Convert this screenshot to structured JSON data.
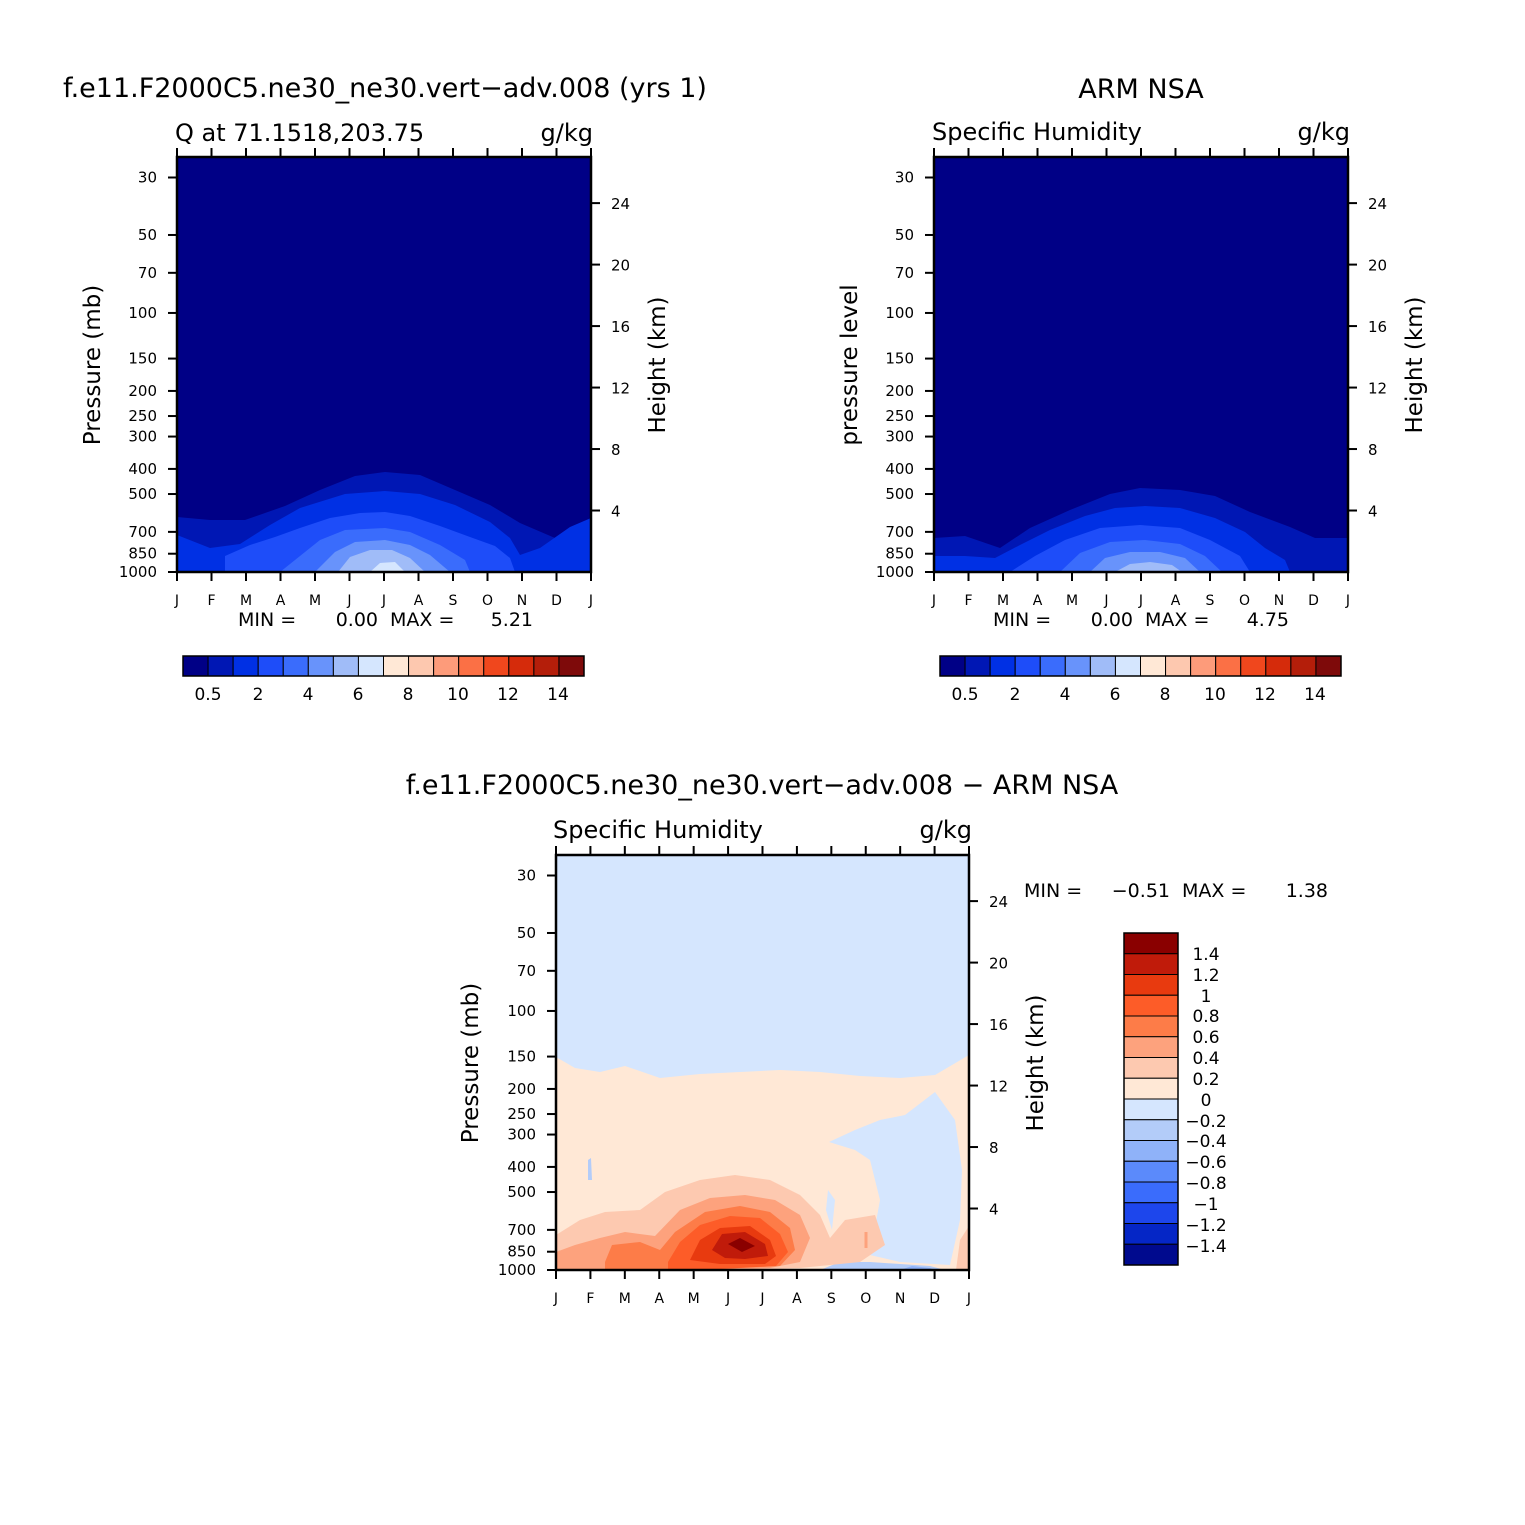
{
  "months": [
    "J",
    "F",
    "M",
    "A",
    "M",
    "J",
    "J",
    "A",
    "S",
    "O",
    "N",
    "D",
    "J"
  ],
  "pressure_ticks": [
    "30",
    "50",
    "70",
    "100",
    "150",
    "200",
    "250",
    "300",
    "400",
    "500",
    "700",
    "850",
    "1000"
  ],
  "pressure_values": [
    30,
    50,
    70,
    100,
    150,
    200,
    250,
    300,
    400,
    500,
    700,
    850,
    1000
  ],
  "height_ticks": [
    "4",
    "8",
    "12",
    "16",
    "20",
    "24"
  ],
  "height_values": [
    4,
    8,
    12,
    16,
    20,
    24
  ],
  "panels": {
    "model": {
      "header": "f.e11.F2000C5.ne30_ne30.vert−adv.008 (yrs 1)",
      "left_label": "Q at 71.1518,203.75",
      "units": "g/kg",
      "ylabel": "Pressure (mb)",
      "ylabel_right": "Height (km)",
      "stats": {
        "min_label": "MIN =",
        "min": "0.00",
        "max_label": "MAX =",
        "max": "5.21"
      },
      "colorbar_labels": [
        "0.5",
        "2",
        "4",
        "6",
        "8",
        "10",
        "12",
        "14"
      ]
    },
    "obs": {
      "header": "ARM NSA",
      "left_label": "Specific Humidity",
      "units": "g/kg",
      "ylabel": "pressure level",
      "ylabel_right": "Height (km)",
      "stats": {
        "min_label": "MIN =",
        "min": "0.00",
        "max_label": "MAX =",
        "max": "4.75"
      },
      "colorbar_labels": [
        "0.5",
        "2",
        "4",
        "6",
        "8",
        "10",
        "12",
        "14"
      ]
    },
    "diff": {
      "header": "f.e11.F2000C5.ne30_ne30.vert−adv.008 − ARM NSA",
      "left_label": "Specific Humidity",
      "units": "g/kg",
      "ylabel": "Pressure (mb)",
      "ylabel_right": "Height (km)",
      "stats": {
        "min_label": "MIN =",
        "min": "−0.51",
        "max_label": "MAX =",
        "max": "1.38"
      },
      "colorbar_labels": [
        "1.4",
        "1.2",
        "1",
        "0.8",
        "0.6",
        "0.4",
        "0.2",
        "0",
        "−0.2",
        "−0.4",
        "−0.6",
        "−0.8",
        "−1",
        "−1.2",
        "−1.4"
      ]
    }
  },
  "colors": {
    "abs_palette": [
      "#000086",
      "#0017b4",
      "#0030e4",
      "#1e4df9",
      "#3a6cfc",
      "#6893fb",
      "#a0bcf8",
      "#d5e6fe",
      "#ffe8d6",
      "#fdc8af",
      "#fd9b7a",
      "#fb7045",
      "#f0471d",
      "#d52b0b",
      "#b41e0a",
      "#7e0a0a"
    ],
    "diff_palette": [
      "#8a0000",
      "#c01b0a",
      "#e83a0f",
      "#fd5c28",
      "#fd7c48",
      "#fda27d",
      "#fdc9b0",
      "#ffe8d6",
      "#d5e6fe",
      "#b3ccf9",
      "#8fb2f9",
      "#5b8afb",
      "#3a6cfc",
      "#1d46ec",
      "#0526c6",
      "#000a8e"
    ]
  },
  "chart_data": [
    {
      "type": "heatmap",
      "title": "f.e11.F2000C5.ne30_ne30.vert−adv.008 (yrs 1)",
      "subtitle": "Q at 71.1518,203.75",
      "units": "g/kg",
      "xlabel": "",
      "ylabel": "Pressure (mb)",
      "ylabel_right": "Height (km)",
      "x": [
        "J",
        "F",
        "M",
        "A",
        "M",
        "J",
        "J",
        "A",
        "S",
        "O",
        "N",
        "D",
        "J"
      ],
      "y_pressure": [
        30,
        50,
        70,
        100,
        150,
        200,
        250,
        300,
        400,
        500,
        700,
        850,
        1000
      ],
      "y_scale": "log",
      "contour_top_pressure": [
        650,
        660,
        660,
        600,
        500,
        430,
        410,
        430,
        500,
        600,
        700,
        700,
        650
      ],
      "min": 0.0,
      "max": 5.21,
      "colorbar_levels": [
        0.5,
        2,
        4,
        6,
        8,
        10,
        12,
        14
      ]
    },
    {
      "type": "heatmap",
      "title": "ARM NSA",
      "subtitle": "Specific Humidity",
      "units": "g/kg",
      "xlabel": "",
      "ylabel": "pressure level",
      "ylabel_right": "Height (km)",
      "x": [
        "J",
        "F",
        "M",
        "A",
        "M",
        "J",
        "J",
        "A",
        "S",
        "O",
        "N",
        "D",
        "J"
      ],
      "y_pressure": [
        30,
        50,
        70,
        100,
        150,
        200,
        250,
        300,
        400,
        500,
        700,
        850,
        1000
      ],
      "y_scale": "log",
      "contour_top_pressure": [
        720,
        720,
        760,
        640,
        560,
        480,
        450,
        460,
        520,
        620,
        720,
        720,
        720
      ],
      "min": 0.0,
      "max": 4.75,
      "colorbar_levels": [
        0.5,
        2,
        4,
        6,
        8,
        10,
        12,
        14
      ]
    },
    {
      "type": "heatmap",
      "title": "f.e11.F2000C5.ne30_ne30.vert−adv.008 − ARM NSA",
      "subtitle": "Specific Humidity",
      "units": "g/kg",
      "xlabel": "",
      "ylabel": "Pressure (mb)",
      "ylabel_right": "Height (km)",
      "x": [
        "J",
        "F",
        "M",
        "A",
        "M",
        "J",
        "J",
        "A",
        "S",
        "O",
        "N",
        "D",
        "J"
      ],
      "y_pressure": [
        30,
        50,
        70,
        100,
        150,
        200,
        250,
        300,
        400,
        500,
        700,
        850,
        1000
      ],
      "y_scale": "log",
      "zero_contour_pressure": [
        150,
        180,
        180,
        185,
        185,
        182,
        180,
        180,
        180,
        180,
        180,
        180,
        150
      ],
      "min": -0.51,
      "max": 1.38,
      "colorbar_levels": [
        -1.4,
        -1.2,
        -1,
        -0.8,
        -0.6,
        -0.4,
        -0.2,
        0,
        0.2,
        0.4,
        0.6,
        0.8,
        1,
        1.2,
        1.4
      ]
    }
  ]
}
